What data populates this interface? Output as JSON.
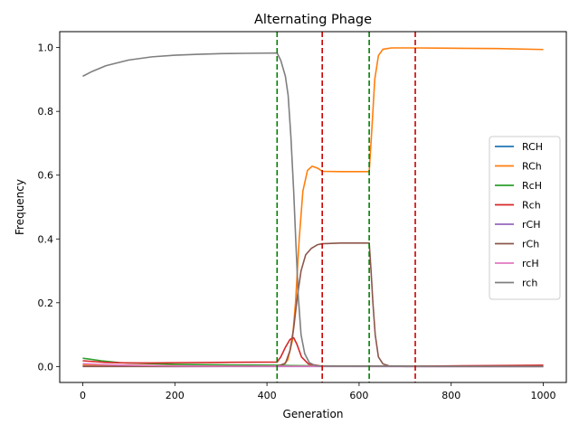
{
  "chart_data": {
    "type": "line",
    "title": "Alternating Phage",
    "xlabel": "Generation",
    "ylabel": "Frequency",
    "xlim": [
      -50,
      1050
    ],
    "ylim": [
      -0.05,
      1.05
    ],
    "xticks": [
      0,
      200,
      400,
      600,
      800,
      1000
    ],
    "yticks": [
      0.0,
      0.2,
      0.4,
      0.6,
      0.8,
      1.0
    ],
    "xtick_labels": [
      "0",
      "200",
      "400",
      "600",
      "800",
      "1000"
    ],
    "ytick_labels": [
      "0.0",
      "0.2",
      "0.4",
      "0.6",
      "0.8",
      "1.0"
    ],
    "grid": false,
    "legend_position": "center-right",
    "series": [
      {
        "name": "RCH",
        "color": "#1f77b4",
        "points": [
          [
            0,
            0.002
          ],
          [
            100,
            0.001
          ],
          [
            200,
            0.001
          ],
          [
            300,
            0.001
          ],
          [
            422,
            0.001
          ],
          [
            520,
            0.001
          ],
          [
            620,
            0.001
          ],
          [
            720,
            0.001
          ],
          [
            1000,
            0.001
          ]
        ]
      },
      {
        "name": "RCh",
        "color": "#ff7f0e",
        "points": [
          [
            0,
            0.005
          ],
          [
            100,
            0.004
          ],
          [
            200,
            0.003
          ],
          [
            300,
            0.002
          ],
          [
            422,
            0.002
          ],
          [
            435,
            0.005
          ],
          [
            445,
            0.02
          ],
          [
            455,
            0.08
          ],
          [
            462,
            0.2
          ],
          [
            470,
            0.4
          ],
          [
            478,
            0.55
          ],
          [
            488,
            0.615
          ],
          [
            498,
            0.628
          ],
          [
            510,
            0.622
          ],
          [
            520,
            0.612
          ],
          [
            560,
            0.611
          ],
          [
            600,
            0.611
          ],
          [
            622,
            0.611
          ],
          [
            628,
            0.75
          ],
          [
            634,
            0.9
          ],
          [
            642,
            0.975
          ],
          [
            652,
            0.995
          ],
          [
            670,
            0.999
          ],
          [
            720,
            0.999
          ],
          [
            800,
            0.998
          ],
          [
            900,
            0.997
          ],
          [
            1000,
            0.994
          ]
        ]
      },
      {
        "name": "RcH",
        "color": "#2ca02c",
        "points": [
          [
            0,
            0.026
          ],
          [
            20,
            0.022
          ],
          [
            40,
            0.018
          ],
          [
            60,
            0.015
          ],
          [
            80,
            0.012
          ],
          [
            100,
            0.011
          ],
          [
            150,
            0.009
          ],
          [
            200,
            0.007
          ],
          [
            300,
            0.005
          ],
          [
            422,
            0.004
          ],
          [
            450,
            0.003
          ],
          [
            520,
            0.002
          ],
          [
            700,
            0.001
          ],
          [
            1000,
            0.001
          ]
        ]
      },
      {
        "name": "Rch",
        "color": "#d62728",
        "points": [
          [
            0,
            0.018
          ],
          [
            50,
            0.013
          ],
          [
            100,
            0.011
          ],
          [
            150,
            0.011
          ],
          [
            200,
            0.012
          ],
          [
            300,
            0.013
          ],
          [
            422,
            0.014
          ],
          [
            430,
            0.03
          ],
          [
            440,
            0.06
          ],
          [
            450,
            0.085
          ],
          [
            458,
            0.09
          ],
          [
            465,
            0.07
          ],
          [
            475,
            0.03
          ],
          [
            490,
            0.008
          ],
          [
            520,
            0.001
          ],
          [
            620,
            0.001
          ],
          [
            720,
            0.001
          ],
          [
            800,
            0.002
          ],
          [
            900,
            0.003
          ],
          [
            1000,
            0.004
          ]
        ]
      },
      {
        "name": "rCH",
        "color": "#9467bd",
        "points": [
          [
            0,
            0.001
          ],
          [
            200,
            0.0
          ],
          [
            422,
            0.0
          ],
          [
            620,
            0.0
          ],
          [
            1000,
            0.0
          ]
        ]
      },
      {
        "name": "rCh",
        "color": "#8c564b",
        "points": [
          [
            0,
            0.0
          ],
          [
            200,
            0.0
          ],
          [
            422,
            0.001
          ],
          [
            440,
            0.01
          ],
          [
            450,
            0.05
          ],
          [
            458,
            0.12
          ],
          [
            466,
            0.22
          ],
          [
            474,
            0.3
          ],
          [
            484,
            0.35
          ],
          [
            496,
            0.37
          ],
          [
            510,
            0.382
          ],
          [
            520,
            0.385
          ],
          [
            560,
            0.387
          ],
          [
            600,
            0.387
          ],
          [
            622,
            0.387
          ],
          [
            626,
            0.3
          ],
          [
            630,
            0.2
          ],
          [
            635,
            0.1
          ],
          [
            642,
            0.03
          ],
          [
            652,
            0.008
          ],
          [
            665,
            0.002
          ],
          [
            700,
            0.0
          ],
          [
            1000,
            0.0
          ]
        ]
      },
      {
        "name": "rcH",
        "color": "#e377c2",
        "points": [
          [
            0,
            0.009
          ],
          [
            50,
            0.006
          ],
          [
            100,
            0.004
          ],
          [
            200,
            0.002
          ],
          [
            300,
            0.001
          ],
          [
            422,
            0.001
          ],
          [
            700,
            0.0
          ],
          [
            1000,
            0.0
          ]
        ]
      },
      {
        "name": "rch",
        "color": "#7f7f7f",
        "points": [
          [
            0,
            0.91
          ],
          [
            20,
            0.925
          ],
          [
            50,
            0.943
          ],
          [
            100,
            0.961
          ],
          [
            150,
            0.971
          ],
          [
            200,
            0.976
          ],
          [
            250,
            0.979
          ],
          [
            300,
            0.981
          ],
          [
            350,
            0.982
          ],
          [
            422,
            0.983
          ],
          [
            430,
            0.96
          ],
          [
            440,
            0.91
          ],
          [
            446,
            0.85
          ],
          [
            452,
            0.72
          ],
          [
            458,
            0.55
          ],
          [
            463,
            0.38
          ],
          [
            468,
            0.22
          ],
          [
            474,
            0.1
          ],
          [
            482,
            0.04
          ],
          [
            492,
            0.012
          ],
          [
            505,
            0.003
          ],
          [
            520,
            0.001
          ],
          [
            1000,
            0.0
          ]
        ]
      }
    ],
    "vlines": [
      {
        "x": 422,
        "color": "#008000",
        "style": "dashed"
      },
      {
        "x": 520,
        "color": "#cc0000",
        "style": "dashed"
      },
      {
        "x": 622,
        "color": "#008000",
        "style": "dashed"
      },
      {
        "x": 722,
        "color": "#cc0000",
        "style": "dashed"
      }
    ]
  }
}
